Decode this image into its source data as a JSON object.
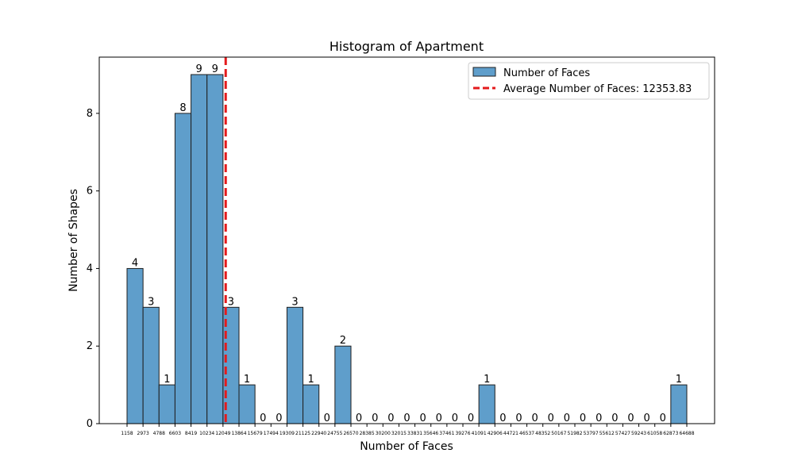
{
  "chart_data": {
    "type": "bar",
    "title": "Histogram of Apartment",
    "xlabel": "Number of Faces",
    "ylabel": "Number of Shapes",
    "ylim": [
      0,
      9.45
    ],
    "yticks": [
      "0",
      "2",
      "4",
      "6",
      "8"
    ],
    "x_tick_labels": [
      "1158",
      "2973",
      "4788",
      "6603",
      "8419",
      "10234",
      "12049",
      "13864",
      "15679",
      "17494",
      "19309",
      "21125",
      "22940",
      "24755",
      "26570",
      "28385",
      "30200",
      "32015",
      "33831",
      "35646",
      "37461",
      "39276",
      "41091",
      "42906",
      "44721",
      "46537",
      "48352",
      "50167",
      "51982",
      "53797",
      "55612",
      "57427",
      "59243",
      "61058",
      "62873",
      "64688"
    ],
    "bin_edges": [
      1158,
      2973,
      4788,
      6603,
      8419,
      10234,
      12049,
      13864,
      15679,
      17494,
      19309,
      21125,
      22940,
      24755,
      26570,
      28385,
      30200,
      32015,
      33831,
      35646,
      37461,
      39276,
      41091,
      42906,
      44721,
      46537,
      48352,
      50167,
      51982,
      53797,
      55612,
      57427,
      59243,
      61058,
      62873,
      64688
    ],
    "values": [
      4,
      3,
      1,
      8,
      9,
      9,
      3,
      1,
      0,
      0,
      3,
      1,
      0,
      2,
      0,
      0,
      0,
      0,
      0,
      0,
      0,
      0,
      1,
      0,
      0,
      0,
      0,
      0,
      0,
      0,
      0,
      0,
      0,
      0,
      1
    ],
    "data_labels": [
      "4",
      "3",
      "1",
      "8",
      "9",
      "9",
      "3",
      "1",
      "0",
      "0",
      "3",
      "1",
      "0",
      "2",
      "0",
      "0",
      "0",
      "0",
      "0",
      "0",
      "0",
      "0",
      "1",
      "0",
      "0",
      "0",
      "0",
      "0",
      "0",
      "0",
      "0",
      "0",
      "0",
      "0",
      "1"
    ],
    "average": 12353.83,
    "legend": {
      "placement": "upper-right",
      "entries": [
        {
          "label": "Number of Faces",
          "kind": "bar"
        },
        {
          "label": "Average Number of Faces: 12353.83",
          "kind": "dashed-line"
        }
      ]
    },
    "colors": {
      "bar_fill": "#5f9ecb",
      "bar_edge": "#1f1f1f",
      "average_line": "#e41a1c"
    },
    "grid": false
  }
}
